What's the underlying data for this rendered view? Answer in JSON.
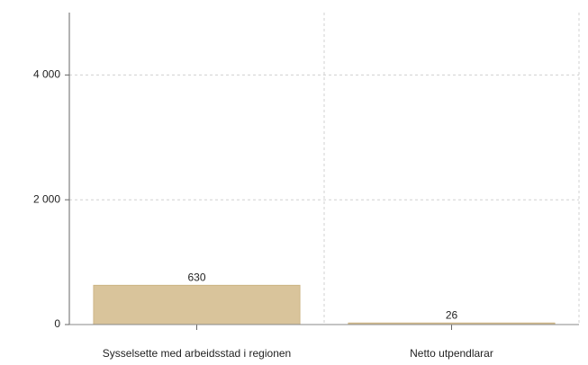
{
  "chart_data": {
    "type": "bar",
    "categories": [
      "Sysselsette med arbeidsstad i regionen",
      "Netto utpendlarar"
    ],
    "values": [
      630,
      26
    ],
    "color": "#d9c49b",
    "ylim": [
      0,
      5000
    ],
    "yticks": [
      0,
      {
        "value": 2000,
        "label": "2 000"
      },
      {
        "value": 4000,
        "label": "4 000"
      }
    ],
    "grid": true
  }
}
